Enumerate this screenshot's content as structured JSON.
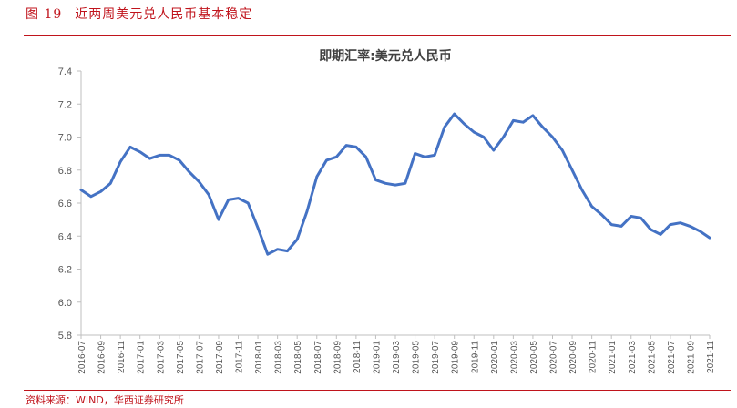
{
  "figure": {
    "number": "图 19",
    "caption": "近两周美元兑人民币基本稳定",
    "source": "资料来源：WIND，华西证券研究所"
  },
  "colors": {
    "accent": "#c0141c",
    "series": "#4472c4",
    "axis": "#bfbfbf"
  },
  "chart_data": {
    "type": "line",
    "title": "即期汇率:美元兑人民币",
    "xlabel": "",
    "ylabel": "",
    "ylim": [
      5.8,
      7.4
    ],
    "yticks": [
      "5.8",
      "6.0",
      "6.2",
      "6.4",
      "6.6",
      "6.8",
      "7.0",
      "7.2",
      "7.4"
    ],
    "xtick_labels": [
      "2016-07",
      "2016-09",
      "2016-11",
      "2017-01",
      "2017-03",
      "2017-05",
      "2017-07",
      "2017-09",
      "2017-11",
      "2018-01",
      "2018-03",
      "2018-05",
      "2018-07",
      "2018-09",
      "2018-11",
      "2019-01",
      "2019-03",
      "2019-05",
      "2019-07",
      "2019-09",
      "2019-11",
      "2020-01",
      "2020-03",
      "2020-05",
      "2020-07",
      "2020-09",
      "2020-11",
      "2021-01",
      "2021-03",
      "2021-05",
      "2021-07",
      "2021-09",
      "2021-11"
    ],
    "grid": false,
    "legend": "none",
    "series": [
      {
        "x": [
          "2016-07",
          "2016-08",
          "2016-09",
          "2016-10",
          "2016-11",
          "2016-12",
          "2017-01",
          "2017-02",
          "2017-03",
          "2017-04",
          "2017-05",
          "2017-06",
          "2017-07",
          "2017-08",
          "2017-09",
          "2017-10",
          "2017-11",
          "2017-12",
          "2018-01",
          "2018-02",
          "2018-03",
          "2018-04",
          "2018-05",
          "2018-06",
          "2018-07",
          "2018-08",
          "2018-09",
          "2018-10",
          "2018-11",
          "2018-12",
          "2019-01",
          "2019-02",
          "2019-03",
          "2019-04",
          "2019-05",
          "2019-06",
          "2019-07",
          "2019-08",
          "2019-09",
          "2019-10",
          "2019-11",
          "2019-12",
          "2020-01",
          "2020-02",
          "2020-03",
          "2020-04",
          "2020-05",
          "2020-06",
          "2020-07",
          "2020-08",
          "2020-09",
          "2020-10",
          "2020-11",
          "2020-12",
          "2021-01",
          "2021-02",
          "2021-03",
          "2021-04",
          "2021-05",
          "2021-06",
          "2021-07",
          "2021-08",
          "2021-09",
          "2021-10",
          "2021-11"
        ],
        "values": [
          6.68,
          6.64,
          6.67,
          6.72,
          6.85,
          6.94,
          6.91,
          6.87,
          6.89,
          6.89,
          6.86,
          6.79,
          6.73,
          6.65,
          6.5,
          6.62,
          6.63,
          6.6,
          6.45,
          6.29,
          6.32,
          6.31,
          6.38,
          6.55,
          6.76,
          6.86,
          6.88,
          6.95,
          6.94,
          6.88,
          6.74,
          6.72,
          6.71,
          6.72,
          6.9,
          6.88,
          6.89,
          7.06,
          7.14,
          7.08,
          7.03,
          7.0,
          6.92,
          7.0,
          7.1,
          7.09,
          7.13,
          7.06,
          7.0,
          6.92,
          6.8,
          6.68,
          6.58,
          6.53,
          6.47,
          6.46,
          6.52,
          6.51,
          6.44,
          6.41,
          6.47,
          6.48,
          6.46,
          6.43,
          6.39
        ]
      }
    ]
  }
}
